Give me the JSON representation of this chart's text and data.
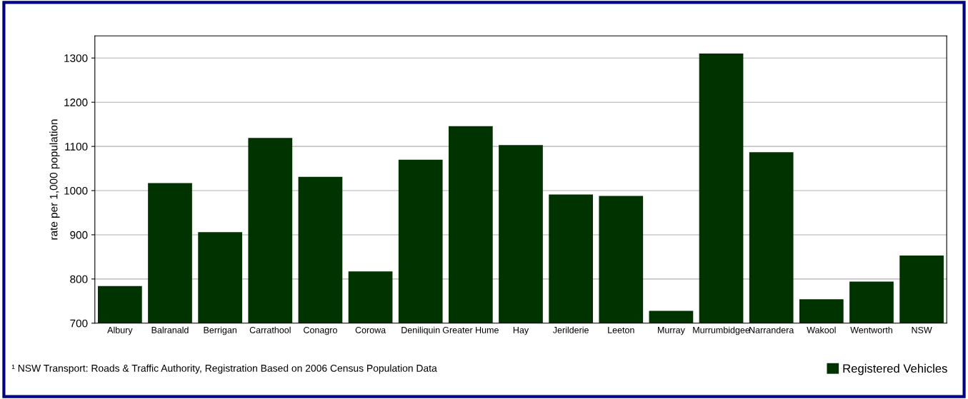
{
  "chart_data": {
    "type": "bar",
    "ylabel": "rate per 1,000 population",
    "categories": [
      "Albury",
      "Balranald",
      "Berrigan",
      "Carrathool",
      "Conagro",
      "Corowa",
      "Deniliquin",
      "Greater Hume",
      "Hay",
      "Jerilderie",
      "Leeton",
      "Murray",
      "Murrumbidgee",
      "Narrandera",
      "Wakool",
      "Wentworth",
      "NSW"
    ],
    "series": [
      {
        "name": "Registered Vehicles",
        "color": "#003300",
        "values": [
          784,
          1017,
          906,
          1119,
          1031,
          817,
          1070,
          1146,
          1103,
          991,
          988,
          728,
          1310,
          1087,
          754,
          794,
          853
        ]
      }
    ],
    "ylim": [
      700,
      1350
    ],
    "yticks": [
      700,
      800,
      900,
      1000,
      1100,
      1200,
      1300
    ],
    "grid": "y",
    "legend": "bottom right",
    "annotations": [
      "¹ NSW Transport: Roads & Traffic Authority, Registration Based on 2006 Census Population Data"
    ]
  }
}
